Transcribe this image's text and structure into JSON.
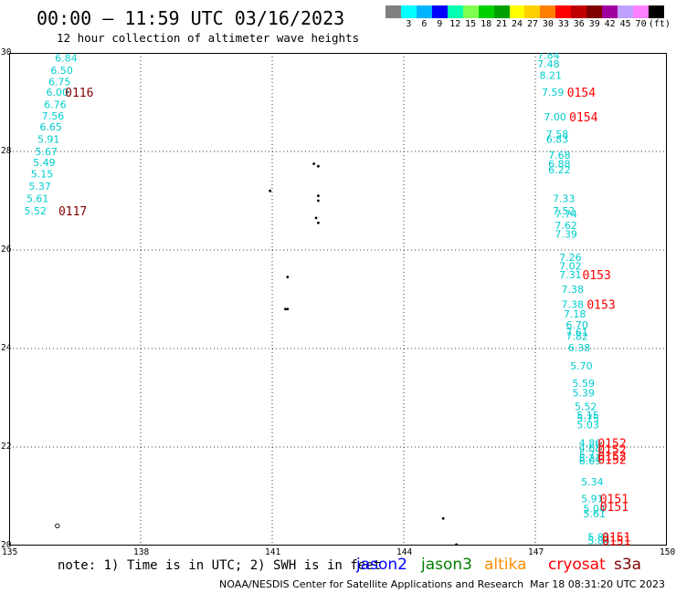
{
  "header": {
    "title": "00:00 – 11:59 UTC 03/16/2023",
    "subtitle": "12 hour collection of altimeter wave heights"
  },
  "colorbar": {
    "colors": [
      "#808080",
      "#00ffff",
      "#00b4ff",
      "#0000ff",
      "#00ffb0",
      "#80ff50",
      "#00d000",
      "#00a000",
      "#ffff00",
      "#ffd000",
      "#ff8000",
      "#ff0000",
      "#c00000",
      "#800000",
      "#a000a0",
      "#c0a0ff",
      "#ff80ff",
      "#000000"
    ],
    "labels": [
      "3",
      "6",
      "9",
      "12",
      "15",
      "18",
      "21",
      "24",
      "27",
      "30",
      "33",
      "36",
      "39",
      "42",
      "45",
      "70"
    ],
    "unit": "(ft)"
  },
  "map": {
    "lon_range": [
      135,
      150
    ],
    "lat_range": [
      20,
      30
    ],
    "lon_labels": [
      "135",
      "138",
      "141",
      "144",
      "147",
      "150"
    ],
    "lat_labels": [
      "30",
      "28",
      "26",
      "24",
      "22",
      "20"
    ],
    "grid": "dotted",
    "track_color": "#00cccc",
    "time_color_old": "#800000",
    "time_color_new": "#ff0000",
    "observations": [
      {
        "lon": 136.3,
        "lat": 29.9,
        "swh": "6.84"
      },
      {
        "lon": 136.2,
        "lat": 29.65,
        "swh": "6.50"
      },
      {
        "lon": 136.15,
        "lat": 29.42,
        "swh": "6.75"
      },
      {
        "lon": 136.1,
        "lat": 29.2,
        "swh": "6.00"
      },
      {
        "lon": 136.05,
        "lat": 28.95,
        "swh": "6.76"
      },
      {
        "lon": 136.0,
        "lat": 28.72,
        "swh": "7.56"
      },
      {
        "lon": 135.95,
        "lat": 28.5,
        "swh": "6.65"
      },
      {
        "lon": 135.9,
        "lat": 28.25,
        "swh": "5.91"
      },
      {
        "lon": 135.85,
        "lat": 28.0,
        "swh": "5.67"
      },
      {
        "lon": 135.8,
        "lat": 27.78,
        "swh": "5.49"
      },
      {
        "lon": 135.75,
        "lat": 27.55,
        "swh": "5.15"
      },
      {
        "lon": 135.7,
        "lat": 27.3,
        "swh": "5.37"
      },
      {
        "lon": 135.65,
        "lat": 27.05,
        "swh": "5.61"
      },
      {
        "lon": 135.6,
        "lat": 26.8,
        "swh": "5.52"
      },
      {
        "lon": 147.3,
        "lat": 29.95,
        "swh": "7.84"
      },
      {
        "lon": 147.3,
        "lat": 29.78,
        "swh": "7.48"
      },
      {
        "lon": 147.35,
        "lat": 29.55,
        "swh": "8.21"
      },
      {
        "lon": 147.4,
        "lat": 29.2,
        "swh": "7.59"
      },
      {
        "lon": 147.45,
        "lat": 28.7,
        "swh": "7.00"
      },
      {
        "lon": 147.5,
        "lat": 28.35,
        "swh": "7.58"
      },
      {
        "lon": 147.5,
        "lat": 28.25,
        "swh": "6.83"
      },
      {
        "lon": 147.55,
        "lat": 27.93,
        "swh": "7.68"
      },
      {
        "lon": 147.55,
        "lat": 27.75,
        "swh": "6.88"
      },
      {
        "lon": 147.55,
        "lat": 27.63,
        "swh": "6.22"
      },
      {
        "lon": 147.65,
        "lat": 27.05,
        "swh": "7.33"
      },
      {
        "lon": 147.65,
        "lat": 26.8,
        "swh": "7.52"
      },
      {
        "lon": 147.7,
        "lat": 26.73,
        "swh": "7.74"
      },
      {
        "lon": 147.7,
        "lat": 26.5,
        "swh": "7.62"
      },
      {
        "lon": 147.7,
        "lat": 26.32,
        "swh": "7.39"
      },
      {
        "lon": 147.8,
        "lat": 25.85,
        "swh": "7.26"
      },
      {
        "lon": 147.8,
        "lat": 25.68,
        "swh": "7.02"
      },
      {
        "lon": 147.8,
        "lat": 25.5,
        "swh": "7.31"
      },
      {
        "lon": 147.85,
        "lat": 25.2,
        "swh": "7.38"
      },
      {
        "lon": 147.85,
        "lat": 24.9,
        "swh": "7.38"
      },
      {
        "lon": 147.9,
        "lat": 24.7,
        "swh": "7.18"
      },
      {
        "lon": 147.95,
        "lat": 24.48,
        "swh": "6.70"
      },
      {
        "lon": 147.95,
        "lat": 24.33,
        "swh": "7.61"
      },
      {
        "lon": 147.95,
        "lat": 24.25,
        "swh": "7.82"
      },
      {
        "lon": 148.0,
        "lat": 24.02,
        "swh": "6.38"
      },
      {
        "lon": 148.05,
        "lat": 23.65,
        "swh": "5.70"
      },
      {
        "lon": 148.1,
        "lat": 23.3,
        "swh": "5.59"
      },
      {
        "lon": 148.1,
        "lat": 23.1,
        "swh": "5.39"
      },
      {
        "lon": 148.15,
        "lat": 22.82,
        "swh": "5.52"
      },
      {
        "lon": 148.2,
        "lat": 22.65,
        "swh": "5.15"
      },
      {
        "lon": 148.2,
        "lat": 22.58,
        "swh": "5.75"
      },
      {
        "lon": 148.2,
        "lat": 22.45,
        "swh": "5.03"
      },
      {
        "lon": 148.25,
        "lat": 22.08,
        "swh": "4.86"
      },
      {
        "lon": 148.25,
        "lat": 21.98,
        "swh": "4.68"
      },
      {
        "lon": 148.25,
        "lat": 21.85,
        "swh": "5.77"
      },
      {
        "lon": 148.25,
        "lat": 21.78,
        "swh": "5.27"
      },
      {
        "lon": 148.25,
        "lat": 21.72,
        "swh": "6.09"
      },
      {
        "lon": 148.3,
        "lat": 21.3,
        "swh": "5.34"
      },
      {
        "lon": 148.3,
        "lat": 20.95,
        "swh": "5.91"
      },
      {
        "lon": 148.35,
        "lat": 20.75,
        "swh": "5.04"
      },
      {
        "lon": 148.35,
        "lat": 20.65,
        "swh": "5.61"
      },
      {
        "lon": 148.45,
        "lat": 20.18,
        "swh": "5.81"
      },
      {
        "lon": 148.45,
        "lat": 20.1,
        "swh": "5.84"
      }
    ],
    "time_marks": [
      {
        "lon": 136.6,
        "lat": 29.2,
        "text": "0116",
        "tone": "old"
      },
      {
        "lon": 136.45,
        "lat": 26.8,
        "text": "0117",
        "tone": "old"
      },
      {
        "lon": 148.05,
        "lat": 29.2,
        "text": "0154",
        "tone": "new"
      },
      {
        "lon": 148.1,
        "lat": 28.7,
        "text": "0154",
        "tone": "new"
      },
      {
        "lon": 148.4,
        "lat": 25.5,
        "text": "0153",
        "tone": "new"
      },
      {
        "lon": 148.5,
        "lat": 24.9,
        "text": "0153",
        "tone": "new"
      },
      {
        "lon": 148.75,
        "lat": 22.08,
        "text": "0152",
        "tone": "new"
      },
      {
        "lon": 148.75,
        "lat": 21.95,
        "text": "0152",
        "tone": "new"
      },
      {
        "lon": 148.75,
        "lat": 21.82,
        "text": "0152",
        "tone": "new"
      },
      {
        "lon": 148.75,
        "lat": 21.75,
        "text": "0152",
        "tone": "new"
      },
      {
        "lon": 148.8,
        "lat": 20.95,
        "text": "0151",
        "tone": "new"
      },
      {
        "lon": 148.8,
        "lat": 20.8,
        "text": "0151",
        "tone": "new"
      },
      {
        "lon": 148.85,
        "lat": 20.18,
        "text": "0151",
        "tone": "new"
      },
      {
        "lon": 148.85,
        "lat": 20.1,
        "text": "0151",
        "tone": "new"
      }
    ],
    "islands": [
      {
        "lon": 141.95,
        "lat": 27.75
      },
      {
        "lon": 142.05,
        "lat": 27.7
      },
      {
        "lon": 140.95,
        "lat": 27.2
      },
      {
        "lon": 142.05,
        "lat": 27.1
      },
      {
        "lon": 142.05,
        "lat": 27.0
      },
      {
        "lon": 142.0,
        "lat": 26.65
      },
      {
        "lon": 142.05,
        "lat": 26.55
      },
      {
        "lon": 141.35,
        "lat": 25.45
      },
      {
        "lon": 141.3,
        "lat": 24.8
      },
      {
        "lon": 141.35,
        "lat": 24.8
      },
      {
        "lon": 144.9,
        "lat": 20.55
      },
      {
        "lon": 145.2,
        "lat": 20.02
      }
    ],
    "reef": {
      "lon": 136.1,
      "lat": 20.4
    }
  },
  "footer": {
    "note": "note: 1) Time is in UTC; 2) SWH is in feet",
    "satellites": [
      {
        "name": "jason2",
        "color": "#0000ff"
      },
      {
        "name": "jason3",
        "color": "#008000"
      },
      {
        "name": "altika",
        "color": "#ff8c00"
      },
      {
        "name": "cryosat",
        "color": "#ff0000"
      },
      {
        "name": "s3a",
        "color": "#800000"
      }
    ],
    "credit": "NOAA/NESDIS Center for Satellite Applications and Research",
    "timestamp": "Mar 18 08:31:20 UTC 2023"
  }
}
